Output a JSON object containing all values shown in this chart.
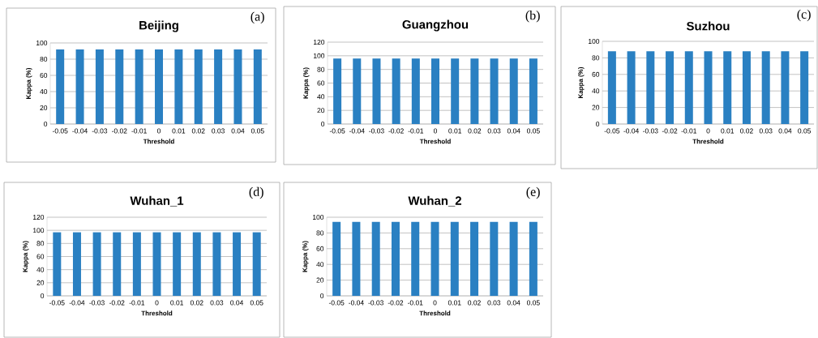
{
  "chart_data": [
    {
      "type": "bar",
      "title": "Beijing",
      "xlabel": "Threshold",
      "ylabel": "Kappa (%)",
      "annotations": [
        "(a)"
      ],
      "categories": [
        "-0.05",
        "-0.04",
        "-0.03",
        "-0.02",
        "-0.01",
        "0",
        "0.01",
        "0.02",
        "0.03",
        "0.04",
        "0.05"
      ],
      "values": [
        92,
        92,
        92,
        92,
        92,
        92,
        92,
        92,
        92,
        92,
        92
      ],
      "color": "#2a80c2",
      "ylim": [
        0,
        100
      ],
      "yticks": [
        0,
        20,
        40,
        60,
        80,
        100
      ],
      "grid": "y"
    },
    {
      "type": "bar",
      "title": "Guangzhou",
      "xlabel": "Threshold",
      "ylabel": "Kappa (%)",
      "annotations": [
        "(b)"
      ],
      "categories": [
        "-0.05",
        "-0.04",
        "-0.03",
        "-0.02",
        "-0.01",
        "0",
        "0.01",
        "0.02",
        "0.03",
        "0.04",
        "0.05"
      ],
      "values": [
        96,
        96,
        96,
        96,
        96,
        96,
        96,
        96,
        96,
        96,
        96
      ],
      "color": "#2a80c2",
      "ylim": [
        0,
        120
      ],
      "yticks": [
        0,
        20,
        40,
        60,
        80,
        100,
        120
      ],
      "grid": "y"
    },
    {
      "type": "bar",
      "title": "Suzhou",
      "xlabel": "Threshold",
      "ylabel": "Kappa (%)",
      "annotations": [
        "(c)"
      ],
      "categories": [
        "-0.05",
        "-0.04",
        "-0.03",
        "-0.02",
        "-0.01",
        "0",
        "0.01",
        "0.02",
        "0.03",
        "0.04",
        "0.05"
      ],
      "values": [
        88,
        88,
        88,
        88,
        88,
        88,
        88,
        88,
        88,
        88,
        88
      ],
      "color": "#2a80c2",
      "ylim": [
        0,
        100
      ],
      "yticks": [
        0,
        20,
        40,
        60,
        80,
        100
      ],
      "grid": "y"
    },
    {
      "type": "bar",
      "title": "Wuhan_1",
      "xlabel": "Threshold",
      "ylabel": "Kappa (%)",
      "annotations": [
        "(d)"
      ],
      "categories": [
        "-0.05",
        "-0.04",
        "-0.03",
        "-0.02",
        "-0.01",
        "0",
        "0.01",
        "0.02",
        "0.03",
        "0.04",
        "0.05"
      ],
      "values": [
        97,
        97,
        97,
        97,
        97,
        97,
        97,
        97,
        97,
        97,
        97
      ],
      "color": "#2a80c2",
      "ylim": [
        0,
        120
      ],
      "yticks": [
        0,
        20,
        40,
        60,
        80,
        100,
        120
      ],
      "grid": "y"
    },
    {
      "type": "bar",
      "title": "Wuhan_2",
      "xlabel": "Threshold",
      "ylabel": "Kappa (%)",
      "annotations": [
        "(e)"
      ],
      "categories": [
        "-0.05",
        "-0.04",
        "-0.03",
        "-0.02",
        "-0.01",
        "0",
        "0.01",
        "0.02",
        "0.03",
        "0.04",
        "0.05"
      ],
      "values": [
        94,
        94,
        94,
        94,
        94,
        94,
        94,
        94,
        94,
        94,
        94
      ],
      "color": "#2a80c2",
      "ylim": [
        0,
        100
      ],
      "yticks": [
        0,
        20,
        40,
        60,
        80,
        100
      ],
      "grid": "y"
    }
  ]
}
